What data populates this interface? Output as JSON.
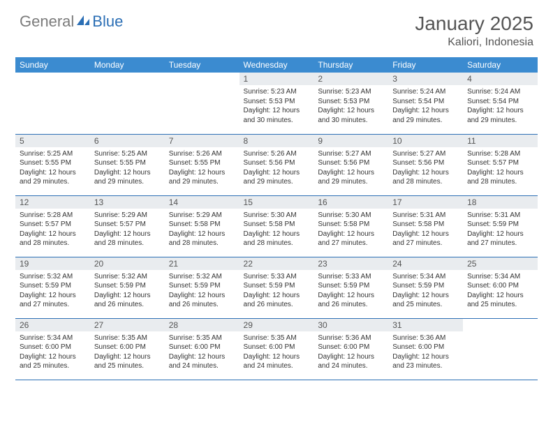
{
  "logo": {
    "text_general": "General",
    "text_blue": "Blue",
    "icon_color": "#2c6fb5",
    "gray": "#7b7b7b"
  },
  "title": "January 2025",
  "location": "Kaliori, Indonesia",
  "colors": {
    "header_bg": "#3b8bd0",
    "header_text": "#ffffff",
    "daynum_bg": "#e9ecef",
    "border": "#2c6fb5",
    "text": "#333333",
    "title_color": "#555555"
  },
  "day_headers": [
    "Sunday",
    "Monday",
    "Tuesday",
    "Wednesday",
    "Thursday",
    "Friday",
    "Saturday"
  ],
  "weeks": [
    [
      null,
      null,
      null,
      {
        "n": "1",
        "sunrise": "5:23 AM",
        "sunset": "5:53 PM",
        "daylight": "12 hours and 30 minutes."
      },
      {
        "n": "2",
        "sunrise": "5:23 AM",
        "sunset": "5:53 PM",
        "daylight": "12 hours and 30 minutes."
      },
      {
        "n": "3",
        "sunrise": "5:24 AM",
        "sunset": "5:54 PM",
        "daylight": "12 hours and 29 minutes."
      },
      {
        "n": "4",
        "sunrise": "5:24 AM",
        "sunset": "5:54 PM",
        "daylight": "12 hours and 29 minutes."
      }
    ],
    [
      {
        "n": "5",
        "sunrise": "5:25 AM",
        "sunset": "5:55 PM",
        "daylight": "12 hours and 29 minutes."
      },
      {
        "n": "6",
        "sunrise": "5:25 AM",
        "sunset": "5:55 PM",
        "daylight": "12 hours and 29 minutes."
      },
      {
        "n": "7",
        "sunrise": "5:26 AM",
        "sunset": "5:55 PM",
        "daylight": "12 hours and 29 minutes."
      },
      {
        "n": "8",
        "sunrise": "5:26 AM",
        "sunset": "5:56 PM",
        "daylight": "12 hours and 29 minutes."
      },
      {
        "n": "9",
        "sunrise": "5:27 AM",
        "sunset": "5:56 PM",
        "daylight": "12 hours and 29 minutes."
      },
      {
        "n": "10",
        "sunrise": "5:27 AM",
        "sunset": "5:56 PM",
        "daylight": "12 hours and 28 minutes."
      },
      {
        "n": "11",
        "sunrise": "5:28 AM",
        "sunset": "5:57 PM",
        "daylight": "12 hours and 28 minutes."
      }
    ],
    [
      {
        "n": "12",
        "sunrise": "5:28 AM",
        "sunset": "5:57 PM",
        "daylight": "12 hours and 28 minutes."
      },
      {
        "n": "13",
        "sunrise": "5:29 AM",
        "sunset": "5:57 PM",
        "daylight": "12 hours and 28 minutes."
      },
      {
        "n": "14",
        "sunrise": "5:29 AM",
        "sunset": "5:58 PM",
        "daylight": "12 hours and 28 minutes."
      },
      {
        "n": "15",
        "sunrise": "5:30 AM",
        "sunset": "5:58 PM",
        "daylight": "12 hours and 28 minutes."
      },
      {
        "n": "16",
        "sunrise": "5:30 AM",
        "sunset": "5:58 PM",
        "daylight": "12 hours and 27 minutes."
      },
      {
        "n": "17",
        "sunrise": "5:31 AM",
        "sunset": "5:58 PM",
        "daylight": "12 hours and 27 minutes."
      },
      {
        "n": "18",
        "sunrise": "5:31 AM",
        "sunset": "5:59 PM",
        "daylight": "12 hours and 27 minutes."
      }
    ],
    [
      {
        "n": "19",
        "sunrise": "5:32 AM",
        "sunset": "5:59 PM",
        "daylight": "12 hours and 27 minutes."
      },
      {
        "n": "20",
        "sunrise": "5:32 AM",
        "sunset": "5:59 PM",
        "daylight": "12 hours and 26 minutes."
      },
      {
        "n": "21",
        "sunrise": "5:32 AM",
        "sunset": "5:59 PM",
        "daylight": "12 hours and 26 minutes."
      },
      {
        "n": "22",
        "sunrise": "5:33 AM",
        "sunset": "5:59 PM",
        "daylight": "12 hours and 26 minutes."
      },
      {
        "n": "23",
        "sunrise": "5:33 AM",
        "sunset": "5:59 PM",
        "daylight": "12 hours and 26 minutes."
      },
      {
        "n": "24",
        "sunrise": "5:34 AM",
        "sunset": "5:59 PM",
        "daylight": "12 hours and 25 minutes."
      },
      {
        "n": "25",
        "sunrise": "5:34 AM",
        "sunset": "6:00 PM",
        "daylight": "12 hours and 25 minutes."
      }
    ],
    [
      {
        "n": "26",
        "sunrise": "5:34 AM",
        "sunset": "6:00 PM",
        "daylight": "12 hours and 25 minutes."
      },
      {
        "n": "27",
        "sunrise": "5:35 AM",
        "sunset": "6:00 PM",
        "daylight": "12 hours and 25 minutes."
      },
      {
        "n": "28",
        "sunrise": "5:35 AM",
        "sunset": "6:00 PM",
        "daylight": "12 hours and 24 minutes."
      },
      {
        "n": "29",
        "sunrise": "5:35 AM",
        "sunset": "6:00 PM",
        "daylight": "12 hours and 24 minutes."
      },
      {
        "n": "30",
        "sunrise": "5:36 AM",
        "sunset": "6:00 PM",
        "daylight": "12 hours and 24 minutes."
      },
      {
        "n": "31",
        "sunrise": "5:36 AM",
        "sunset": "6:00 PM",
        "daylight": "12 hours and 23 minutes."
      },
      null
    ]
  ],
  "labels": {
    "sunrise": "Sunrise:",
    "sunset": "Sunset:",
    "daylight": "Daylight:"
  }
}
